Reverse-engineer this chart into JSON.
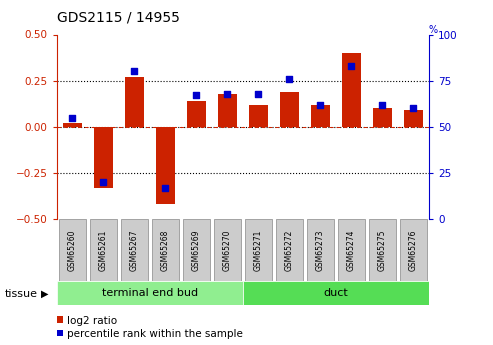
{
  "title": "GDS2115 / 14955",
  "samples": [
    "GSM65260",
    "GSM65261",
    "GSM65267",
    "GSM65268",
    "GSM65269",
    "GSM65270",
    "GSM65271",
    "GSM65272",
    "GSM65273",
    "GSM65274",
    "GSM65275",
    "GSM65276"
  ],
  "log2_ratio": [
    0.02,
    -0.33,
    0.27,
    -0.42,
    0.14,
    0.18,
    0.12,
    0.19,
    0.12,
    0.4,
    0.1,
    0.09
  ],
  "percentile": [
    55,
    20,
    80,
    17,
    67,
    68,
    68,
    76,
    62,
    83,
    62,
    60
  ],
  "groups": [
    {
      "label": "terminal end bud",
      "indices": [
        0,
        1,
        2,
        3,
        4,
        5
      ],
      "color": "#90EE90"
    },
    {
      "label": "duct",
      "indices": [
        6,
        7,
        8,
        9,
        10,
        11
      ],
      "color": "#55dd55"
    }
  ],
  "ylim_left": [
    -0.5,
    0.5
  ],
  "ylim_right": [
    0,
    100
  ],
  "yticks_left": [
    -0.5,
    -0.25,
    0.0,
    0.25,
    0.5
  ],
  "yticks_right": [
    0,
    25,
    50,
    75,
    100
  ],
  "bar_color": "#cc2200",
  "dot_color": "#0000cc",
  "bg_sample": "#cccccc",
  "left_axis_color": "#cc2200",
  "right_axis_color": "#0000cc",
  "tissue_label": "tissue",
  "legend_log2": "log2 ratio",
  "legend_pct": "percentile rank within the sample"
}
